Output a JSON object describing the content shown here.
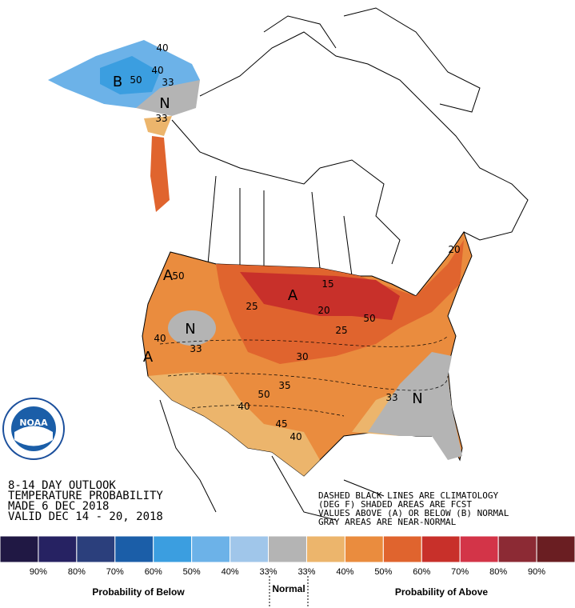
{
  "header": {
    "lines": [
      "8-14 DAY OUTLOOK",
      "TEMPERATURE PROBABILITY",
      "MADE  6 DEC 2018",
      "VALID  DEC 14 - 20, 2018"
    ]
  },
  "notes": {
    "lines": [
      "DASHED BLACK LINES ARE CLIMATOLOGY",
      "(DEG F) SHADED AREAS ARE FCST",
      "VALUES ABOVE (A) OR BELOW (B) NORMAL",
      "GRAY AREAS ARE NEAR-NORMAL"
    ]
  },
  "logo": {
    "text": "NOAA"
  },
  "map_labels": [
    "B",
    "40",
    "40",
    "50",
    "33",
    "N",
    "33",
    "A",
    "50",
    "N",
    "40",
    "33",
    "A",
    "A",
    "15",
    "25",
    "20",
    "25",
    "30",
    "50",
    "50",
    "35",
    "40",
    "45",
    "40",
    "33",
    "N",
    "20"
  ],
  "legend": {
    "colors": [
      "#201844",
      "#262262",
      "#2b3f7c",
      "#1b5ea8",
      "#3b9ee0",
      "#6cb2e8",
      "#a0c6ea",
      "#b4b4b4",
      "#ecb56c",
      "#ea8c3e",
      "#e0642e",
      "#c8302a",
      "#d33448",
      "#8c2a34",
      "#6a1e22"
    ],
    "labels": [
      "90%",
      "80%",
      "70%",
      "60%",
      "50%",
      "40%",
      "33%",
      "33%",
      "40%",
      "50%",
      "60%",
      "70%",
      "80%",
      "90%"
    ],
    "below_title": "Probability of Below",
    "normal_title": "Normal",
    "above_title": "Probability of Above"
  }
}
